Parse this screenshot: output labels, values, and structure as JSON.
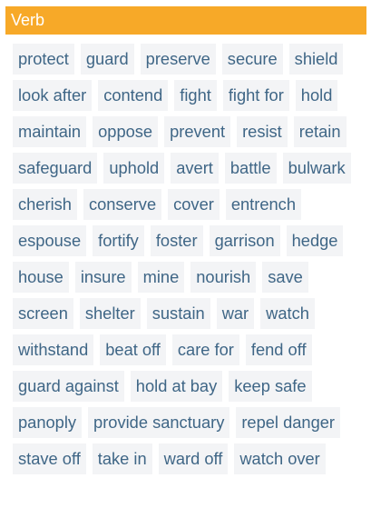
{
  "section": {
    "title": "Verb",
    "accent_color": "#f7a928",
    "chip_text_color": "#3f6686",
    "chip_background": "#f3f4f6"
  },
  "words": [
    "protect",
    "guard",
    "preserve",
    "secure",
    "shield",
    "look after",
    "contend",
    "fight",
    "fight for",
    "hold",
    "maintain",
    "oppose",
    "prevent",
    "resist",
    "retain",
    "safeguard",
    "uphold",
    "avert",
    "battle",
    "bulwark",
    "cherish",
    "conserve",
    "cover",
    "entrench",
    "espouse",
    "fortify",
    "foster",
    "garrison",
    "hedge",
    "house",
    "insure",
    "mine",
    "nourish",
    "save",
    "screen",
    "shelter",
    "sustain",
    "war",
    "watch",
    "withstand",
    "beat off",
    "care for",
    "fend off",
    "guard against",
    "hold at bay",
    "keep safe",
    "panoply",
    "provide sanctuary",
    "repel danger",
    "stave off",
    "take in",
    "ward off",
    "watch over"
  ]
}
